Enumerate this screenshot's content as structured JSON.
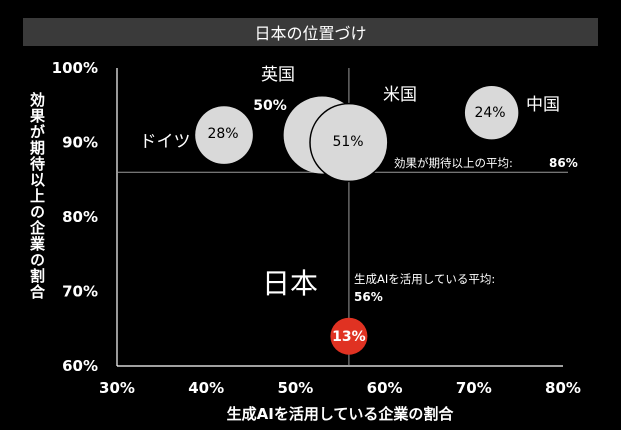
{
  "chart_data": {
    "type": "scatter",
    "title": "日本の位置づけ",
    "xlabel": "生成AIを活用している企業の割合",
    "ylabel": "効果が期待以上の企業の割合",
    "xlim": [
      30,
      80
    ],
    "ylim": [
      60,
      100
    ],
    "xticks": [
      "30%",
      "40%",
      "50%",
      "60%",
      "70%",
      "80%"
    ],
    "yticks": [
      "100%",
      "90%",
      "80%",
      "70%",
      "60%"
    ],
    "points": [
      {
        "name": "ドイツ",
        "x": 42,
        "y": 91,
        "value_label": "28%",
        "size": 28
      },
      {
        "name": "英国",
        "x": 53,
        "y": 91,
        "value_label": "50%",
        "size": 50
      },
      {
        "name": "米国",
        "x": 56,
        "y": 90,
        "value_label": "51%",
        "size": 51
      },
      {
        "name": "中国",
        "x": 72,
        "y": 94,
        "value_label": "24%",
        "size": 24
      },
      {
        "name": "日本",
        "x": 56,
        "y": 64,
        "value_label": "13%",
        "size": 13,
        "highlight": true
      }
    ],
    "reference_lines": {
      "horizontal": {
        "y": 86,
        "label": "効果が期待以上の平均:",
        "value": "86%"
      },
      "vertical": {
        "x": 56,
        "label": "生成AIを活用している平均:",
        "value": "56%"
      }
    },
    "colors": {
      "bubble": "#d9d9d9",
      "highlight": "#e03222",
      "background": "#000000"
    }
  }
}
